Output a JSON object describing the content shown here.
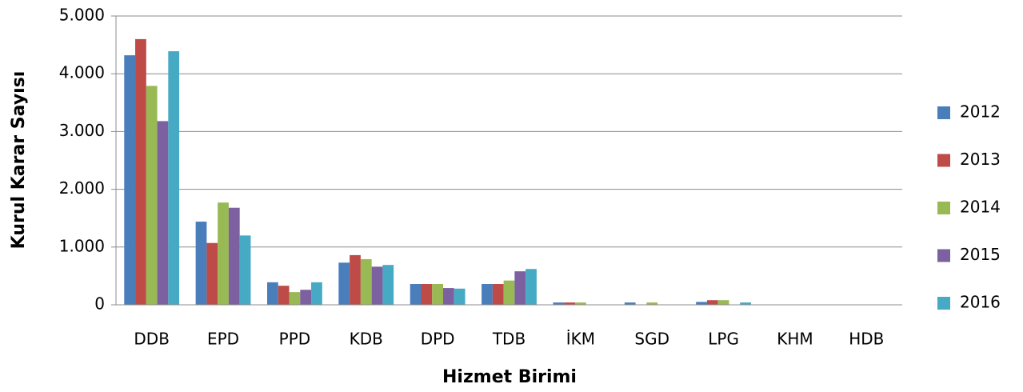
{
  "chart_data": {
    "type": "bar",
    "xlabel": "Hizmet Birimi",
    "ylabel": "Kurul Karar Sayısı",
    "categories": [
      "DDB",
      "EPD",
      "PPD",
      "KDB",
      "DPD",
      "TDB",
      "İKM",
      "SGD",
      "LPG",
      "KHM",
      "HDB"
    ],
    "series": [
      {
        "name": "2012",
        "color": "#4a7ebb",
        "values": [
          4320,
          1440,
          390,
          730,
          360,
          360,
          40,
          40,
          50,
          0,
          0
        ]
      },
      {
        "name": "2013",
        "color": "#be4b48",
        "values": [
          4600,
          1070,
          330,
          860,
          360,
          360,
          40,
          0,
          80,
          0,
          0
        ]
      },
      {
        "name": "2014",
        "color": "#98b954",
        "values": [
          3790,
          1770,
          220,
          790,
          360,
          420,
          40,
          40,
          80,
          0,
          0
        ]
      },
      {
        "name": "2015",
        "color": "#7d60a0",
        "values": [
          3180,
          1680,
          260,
          660,
          290,
          580,
          0,
          0,
          0,
          0,
          0
        ]
      },
      {
        "name": "2016",
        "color": "#46aac5",
        "values": [
          4390,
          1200,
          390,
          690,
          280,
          620,
          0,
          0,
          40,
          0,
          0
        ]
      }
    ],
    "ylim": [
      0,
      5000
    ],
    "yticks": [
      0,
      {
        "value": 1000,
        "label": "1.000"
      },
      {
        "value": 2000,
        "label": "2.000"
      },
      {
        "value": 3000,
        "label": "3.000"
      },
      {
        "value": 4000,
        "label": "4.000"
      },
      {
        "value": 5000,
        "label": "5.000"
      }
    ],
    "grid": true,
    "legend": "right"
  }
}
